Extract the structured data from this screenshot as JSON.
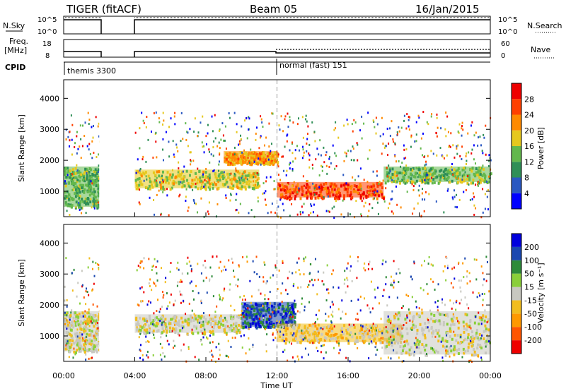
{
  "header": {
    "station": "TIGER (fitACF)",
    "beam": "Beam 05",
    "date": "16/Jan/2015"
  },
  "strips": {
    "nsky": {
      "label": "N.Sky",
      "ticks": [
        "10^5",
        "10^0"
      ],
      "right_label": "N.Search",
      "right_ticks": [
        "10^5",
        "10^0"
      ]
    },
    "freq": {
      "label_top": "Freq.",
      "label_unit": "[MHz]",
      "ticks": [
        "18",
        "8"
      ],
      "right_label": "Nave",
      "right_ticks": [
        "60",
        "0"
      ]
    },
    "cpid": {
      "label": "CPID",
      "modes": [
        {
          "name": "themis 3300",
          "start_hour": 0
        },
        {
          "name": "normal (fast) 151",
          "start_hour": 12
        }
      ]
    }
  },
  "x_axis": {
    "label": "Time UT",
    "ticks": [
      "00:00",
      "04:00",
      "08:00",
      "12:00",
      "16:00",
      "20:00",
      "00:00"
    ],
    "range_hours": [
      0,
      24
    ]
  },
  "y_axis": {
    "label": "Slant Range [km]",
    "ticks": [
      "1000",
      "2000",
      "3000",
      "4000"
    ],
    "range_km": [
      180,
      4600
    ]
  },
  "chart_data": [
    {
      "type": "heatmap",
      "name": "power",
      "colorbar": {
        "label": "Power [dB]",
        "ticks": [
          "4",
          "8",
          "12",
          "16",
          "20",
          "24",
          "28"
        ],
        "range": [
          0,
          32
        ],
        "colors": [
          "#0000ff",
          "#2a58c2",
          "#2f8f57",
          "#63b84d",
          "#e6c81e",
          "#ff8a00",
          "#ff4000",
          "#ee0000"
        ]
      },
      "data_gaps_hours": [
        [
          2,
          4
        ]
      ],
      "bands": [
        {
          "t0": 0,
          "t1": 2,
          "r0": 500,
          "r1": 1800,
          "value": 13
        },
        {
          "t0": 4,
          "t1": 11,
          "r0": 1100,
          "r1": 1700,
          "value": 17
        },
        {
          "t0": 9,
          "t1": 12,
          "r0": 1900,
          "r1": 2300,
          "value": 21
        },
        {
          "t0": 12,
          "t1": 18,
          "r0": 800,
          "r1": 1300,
          "value": 26
        },
        {
          "t0": 18,
          "t1": 24,
          "r0": 1300,
          "r1": 1800,
          "value": 14
        }
      ]
    },
    {
      "type": "heatmap",
      "name": "velocity",
      "colorbar": {
        "label": "Velocity [m s⁻¹]",
        "ticks": [
          "200",
          "100",
          "50",
          "15",
          "-15",
          "-50",
          "-100",
          "-200"
        ],
        "range": [
          -250,
          250
        ],
        "colors": [
          "#ee0000",
          "#ff5500",
          "#ff9900",
          "#f2bd1e",
          "#c8c8c0",
          "#8acf3a",
          "#2e8b3a",
          "#1a47b0",
          "#0000dd"
        ]
      },
      "data_gaps_hours": [
        [
          2,
          4
        ]
      ],
      "bands": [
        {
          "t0": 0,
          "t1": 2,
          "r0": 500,
          "r1": 1800,
          "value": 0
        },
        {
          "t0": 4,
          "t1": 10,
          "r0": 1100,
          "r1": 1700,
          "value": 0
        },
        {
          "t0": 10,
          "t1": 13,
          "r0": 1300,
          "r1": 2100,
          "value": 160
        },
        {
          "t0": 12,
          "t1": 19,
          "r0": 800,
          "r1": 1400,
          "value": -40
        },
        {
          "t0": 18,
          "t1": 24,
          "r0": 400,
          "r1": 1800,
          "value": 0
        }
      ]
    }
  ]
}
